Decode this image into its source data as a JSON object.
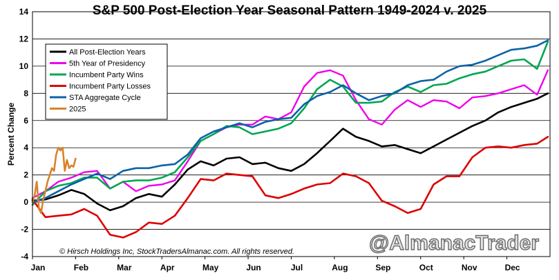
{
  "chart_data": {
    "type": "line",
    "title": "S&P 500 Post-Election Year Seasonal Pattern 1949-2024 v. 2025",
    "ylabel": "Percent Change",
    "xlabel": "",
    "ylim": [
      -4,
      14
    ],
    "yticks": [
      -4,
      -2,
      0,
      2,
      4,
      6,
      8,
      10,
      12,
      14
    ],
    "grid": "horizontal",
    "legend_position": "top-left",
    "x_months": [
      "Jan",
      "Feb",
      "Mar",
      "Apr",
      "May",
      "Jun",
      "Jul",
      "Aug",
      "Sep",
      "Oct",
      "Nov",
      "Dec"
    ],
    "copyright": "© Hirsch Holdings Inc, StockTradersAlmanac.com. All rights reserved.",
    "watermark": "@AlmanacTrader",
    "series": [
      {
        "name": "All Post-Election Years",
        "color": "#000000",
        "width": 2.6,
        "x": [
          0,
          0.3,
          0.6,
          0.9,
          1.2,
          1.5,
          1.8,
          2.1,
          2.4,
          2.7,
          3.0,
          3.3,
          3.6,
          3.9,
          4.2,
          4.5,
          4.8,
          5.1,
          5.4,
          5.7,
          6.0,
          6.3,
          6.6,
          6.9,
          7.2,
          7.5,
          7.8,
          8.1,
          8.4,
          8.7,
          9.0,
          9.3,
          9.6,
          9.9,
          10.2,
          10.5,
          10.8,
          11.1,
          11.4,
          11.7,
          11.95
        ],
        "values": [
          0.1,
          0.2,
          0.5,
          0.9,
          0.6,
          -0.1,
          -0.6,
          -0.3,
          0.3,
          0.6,
          0.4,
          1.3,
          2.4,
          3.0,
          2.7,
          3.2,
          3.3,
          2.8,
          2.9,
          2.5,
          2.3,
          2.8,
          3.6,
          4.5,
          5.4,
          4.8,
          4.5,
          4.1,
          4.2,
          3.9,
          3.6,
          4.1,
          4.6,
          5.1,
          5.6,
          6.0,
          6.6,
          7.0,
          7.3,
          7.6,
          8.0
        ]
      },
      {
        "name": "5th Year of Presidency",
        "color": "#ee00ee",
        "width": 2.4,
        "x": [
          0,
          0.3,
          0.6,
          0.9,
          1.2,
          1.5,
          1.8,
          2.1,
          2.4,
          2.7,
          3.0,
          3.3,
          3.6,
          3.9,
          4.2,
          4.5,
          4.8,
          5.1,
          5.4,
          5.7,
          6.0,
          6.3,
          6.6,
          6.9,
          7.2,
          7.5,
          7.8,
          8.1,
          8.4,
          8.7,
          9.0,
          9.3,
          9.6,
          9.9,
          10.2,
          10.5,
          10.8,
          11.1,
          11.4,
          11.7,
          11.95
        ],
        "values": [
          0.3,
          0.8,
          1.5,
          1.8,
          2.2,
          2.3,
          1.0,
          1.5,
          0.8,
          1.2,
          1.3,
          1.6,
          3.0,
          4.5,
          5.0,
          5.5,
          5.7,
          5.7,
          6.3,
          6.1,
          6.6,
          8.5,
          9.5,
          9.7,
          9.3,
          7.5,
          6.1,
          5.7,
          6.8,
          7.5,
          7.0,
          7.5,
          7.4,
          6.9,
          7.7,
          7.8,
          8.0,
          8.3,
          8.6,
          7.9,
          9.7
        ]
      },
      {
        "name": "Incumbent Party Wins",
        "color": "#00a651",
        "width": 2.6,
        "x": [
          0,
          0.3,
          0.6,
          0.9,
          1.2,
          1.5,
          1.8,
          2.1,
          2.4,
          2.7,
          3.0,
          3.3,
          3.6,
          3.9,
          4.2,
          4.5,
          4.8,
          5.1,
          5.4,
          5.7,
          6.0,
          6.3,
          6.6,
          6.9,
          7.2,
          7.5,
          7.8,
          8.1,
          8.4,
          8.7,
          9.0,
          9.3,
          9.6,
          9.9,
          10.2,
          10.5,
          10.8,
          11.1,
          11.4,
          11.7,
          11.95
        ],
        "values": [
          -0.2,
          0.8,
          1.2,
          1.4,
          1.8,
          1.8,
          1.0,
          1.5,
          1.6,
          1.6,
          1.8,
          2.2,
          3.3,
          4.5,
          5.0,
          5.6,
          5.5,
          5.0,
          5.2,
          5.4,
          5.8,
          6.9,
          8.3,
          9.0,
          8.5,
          7.3,
          7.3,
          7.4,
          8.1,
          8.5,
          8.1,
          8.6,
          8.7,
          9.1,
          9.4,
          9.6,
          10.0,
          10.4,
          10.5,
          9.8,
          11.8
        ]
      },
      {
        "name": "Incumbent Party Losses",
        "color": "#dd0000",
        "width": 2.6,
        "x": [
          0,
          0.3,
          0.6,
          0.9,
          1.2,
          1.5,
          1.8,
          2.1,
          2.4,
          2.7,
          3.0,
          3.3,
          3.6,
          3.9,
          4.2,
          4.5,
          4.8,
          5.1,
          5.4,
          5.7,
          6.0,
          6.3,
          6.6,
          6.9,
          7.2,
          7.5,
          7.8,
          8.1,
          8.4,
          8.7,
          9.0,
          9.3,
          9.6,
          9.9,
          10.2,
          10.5,
          10.8,
          11.1,
          11.4,
          11.7,
          11.95
        ],
        "values": [
          0.2,
          -1.1,
          -1.0,
          -0.9,
          -0.5,
          -1.0,
          -2.4,
          -2.6,
          -2.2,
          -1.5,
          -1.6,
          -1.0,
          0.3,
          1.7,
          1.6,
          2.1,
          2.0,
          1.9,
          0.5,
          0.3,
          0.6,
          1.0,
          1.3,
          1.4,
          2.1,
          1.9,
          1.4,
          0.1,
          -0.3,
          -0.8,
          -0.5,
          1.3,
          1.9,
          1.9,
          3.3,
          4.0,
          4.1,
          4.0,
          4.2,
          4.3,
          4.8
        ]
      },
      {
        "name": "STA Aggregate Cycle",
        "color": "#0a62a8",
        "width": 2.6,
        "x": [
          0,
          0.3,
          0.6,
          0.9,
          1.2,
          1.5,
          1.8,
          2.1,
          2.4,
          2.7,
          3.0,
          3.3,
          3.6,
          3.9,
          4.2,
          4.5,
          4.8,
          5.1,
          5.4,
          5.7,
          6.0,
          6.3,
          6.6,
          6.9,
          7.2,
          7.5,
          7.8,
          8.1,
          8.4,
          8.7,
          9.0,
          9.3,
          9.6,
          9.9,
          10.2,
          10.5,
          10.8,
          11.1,
          11.4,
          11.7,
          11.95
        ],
        "values": [
          0.0,
          0.3,
          0.8,
          1.3,
          1.7,
          2.1,
          1.7,
          2.3,
          2.5,
          2.5,
          2.7,
          2.8,
          3.5,
          4.7,
          5.2,
          5.5,
          5.8,
          5.5,
          5.9,
          6.1,
          6.2,
          7.2,
          7.8,
          8.1,
          8.6,
          8.0,
          7.5,
          7.8,
          8.0,
          8.6,
          8.9,
          9.0,
          9.6,
          10.0,
          10.1,
          10.4,
          10.8,
          11.2,
          11.3,
          11.5,
          11.9
        ]
      },
      {
        "name": "2025",
        "color": "#d9822b",
        "width": 2.6,
        "x": [
          0,
          0.05,
          0.1,
          0.15,
          0.2,
          0.25,
          0.3,
          0.35,
          0.4,
          0.45,
          0.5,
          0.55,
          0.6,
          0.65,
          0.7,
          0.75,
          0.8,
          0.85,
          0.9,
          0.95,
          1.0
        ],
        "values": [
          0.0,
          0.5,
          1.5,
          -0.5,
          -0.8,
          0.2,
          0.8,
          1.5,
          2.0,
          2.5,
          2.3,
          3.5,
          4.0,
          3.8,
          4.0,
          2.3,
          3.1,
          2.5,
          2.7,
          2.6,
          3.2
        ]
      }
    ]
  }
}
